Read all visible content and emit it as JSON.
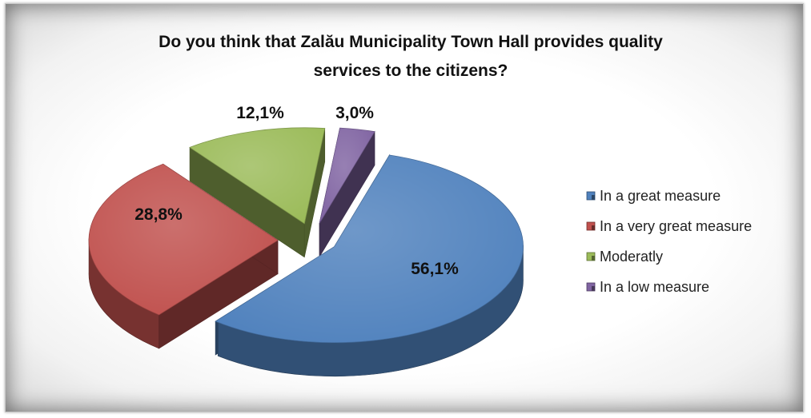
{
  "chart_data": {
    "type": "pie",
    "title_lines": [
      "Do you think that Zalău Municipality Town Hall provides quality",
      "services to the citizens?"
    ],
    "categories": [
      "In a great measure",
      "In a very great measure",
      "Moderatly",
      "In a low measure"
    ],
    "values": [
      56.1,
      28.8,
      12.1,
      3.0
    ],
    "data_labels": [
      "56,1%",
      "28,8%",
      "12,1%",
      "3,0%"
    ],
    "colors": [
      "#4F81BD",
      "#C0504D",
      "#9BBB59",
      "#8064A2"
    ],
    "style": "3D exploded pie",
    "legend_position": "right"
  }
}
